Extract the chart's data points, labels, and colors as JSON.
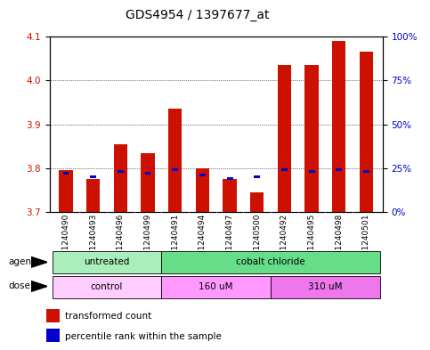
{
  "title": "GDS4954 / 1397677_at",
  "samples": [
    "GSM1240490",
    "GSM1240493",
    "GSM1240496",
    "GSM1240499",
    "GSM1240491",
    "GSM1240494",
    "GSM1240497",
    "GSM1240500",
    "GSM1240492",
    "GSM1240495",
    "GSM1240498",
    "GSM1240501"
  ],
  "transformed_count": [
    3.795,
    3.775,
    3.855,
    3.833,
    3.935,
    3.8,
    3.775,
    3.745,
    4.035,
    4.035,
    4.09,
    4.065
  ],
  "percentile_rank": [
    22,
    20,
    23,
    22,
    24,
    21,
    19,
    20,
    24,
    23,
    24,
    23
  ],
  "ymin": 3.7,
  "ymax": 4.1,
  "yright_min": 0,
  "yright_max": 100,
  "yticks_left": [
    3.7,
    3.8,
    3.9,
    4.0,
    4.1
  ],
  "yticks_right": [
    0,
    25,
    50,
    75,
    100
  ],
  "ytick_labels_right": [
    "0%",
    "25%",
    "50%",
    "75%",
    "100%"
  ],
  "bar_color_red": "#cc1100",
  "bar_color_blue": "#0000cc",
  "bar_width": 0.5,
  "agent_groups": [
    {
      "label": "untreated",
      "start": 0,
      "end": 4,
      "color": "#aaeebb"
    },
    {
      "label": "cobalt chloride",
      "start": 4,
      "end": 12,
      "color": "#66dd88"
    }
  ],
  "dose_groups": [
    {
      "label": "control",
      "start": 0,
      "end": 4,
      "color": "#ffccff"
    },
    {
      "label": "160 uM",
      "start": 4,
      "end": 8,
      "color": "#ff99ff"
    },
    {
      "label": "310 uM",
      "start": 8,
      "end": 12,
      "color": "#ee77ee"
    }
  ],
  "agent_label": "agent",
  "dose_label": "dose",
  "legend_red": "transformed count",
  "legend_blue": "percentile rank within the sample",
  "grid_color": "black",
  "background_color": "#ffffff",
  "tick_color_left": "#cc1100",
  "tick_color_right": "#0000cc",
  "sample_bg_color": "#cccccc",
  "fontsize_title": 10,
  "fontsize_ticks": 7.5,
  "fontsize_labels": 7.5,
  "fontsize_sample": 6.5
}
